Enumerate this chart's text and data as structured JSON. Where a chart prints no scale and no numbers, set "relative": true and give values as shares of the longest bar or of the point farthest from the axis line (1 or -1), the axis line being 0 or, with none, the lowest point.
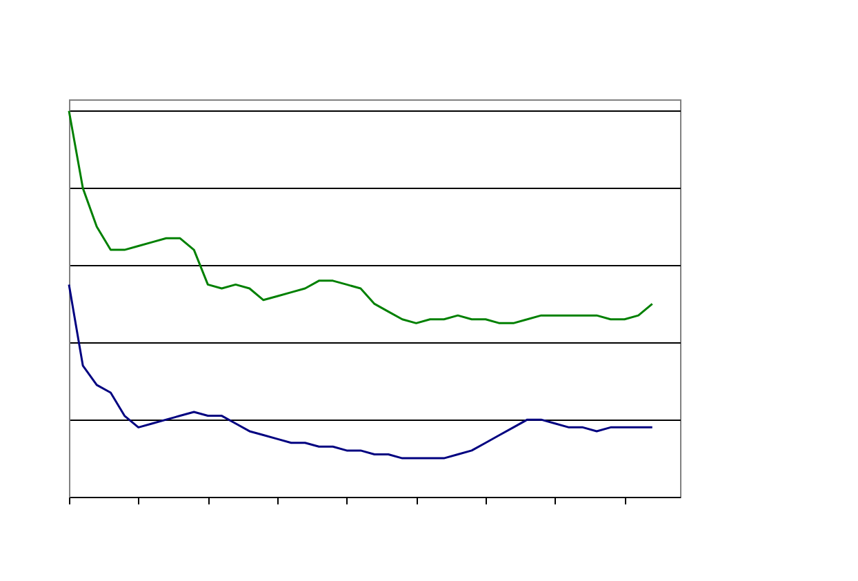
{
  "chart_data": {
    "type": "line",
    "relative": true,
    "grid": "y",
    "tick_labels": false,
    "categories": [
      null,
      null,
      null,
      null,
      null,
      null,
      null,
      null,
      null,
      null,
      null,
      null,
      null,
      null,
      null,
      null,
      null,
      null,
      null,
      null,
      null,
      null,
      null,
      null,
      null,
      null,
      null,
      null,
      null,
      null,
      null,
      null,
      null,
      null,
      null,
      null,
      null,
      null,
      null,
      null,
      null,
      null,
      null,
      null,
      null
    ],
    "series": [
      {
        "color": "#000080",
        "values": [
          0.55,
          0.34,
          0.29,
          0.27,
          0.21,
          0.18,
          0.19,
          0.2,
          0.21,
          0.22,
          0.21,
          0.21,
          0.19,
          0.17,
          0.16,
          0.15,
          0.14,
          0.14,
          0.13,
          0.13,
          0.12,
          0.12,
          0.11,
          0.11,
          0.1,
          0.1,
          0.1,
          0.1,
          0.11,
          0.12,
          0.14,
          0.16,
          0.18,
          0.2,
          0.2,
          0.19,
          0.18,
          0.18,
          0.17,
          0.18,
          0.18,
          0.18,
          0.18,
          null,
          null
        ]
      },
      {
        "color": "#008000",
        "values": [
          1.0,
          0.8,
          0.7,
          0.64,
          0.64,
          0.65,
          0.66,
          0.67,
          0.67,
          0.64,
          0.55,
          0.54,
          0.55,
          0.54,
          0.51,
          0.52,
          0.53,
          0.54,
          0.56,
          0.56,
          0.55,
          0.54,
          0.5,
          0.48,
          0.46,
          0.45,
          0.46,
          0.46,
          0.47,
          0.46,
          0.46,
          0.45,
          0.45,
          0.46,
          0.47,
          0.47,
          0.47,
          0.47,
          0.47,
          0.46,
          0.46,
          0.47,
          0.5,
          null,
          null
        ]
      }
    ]
  }
}
